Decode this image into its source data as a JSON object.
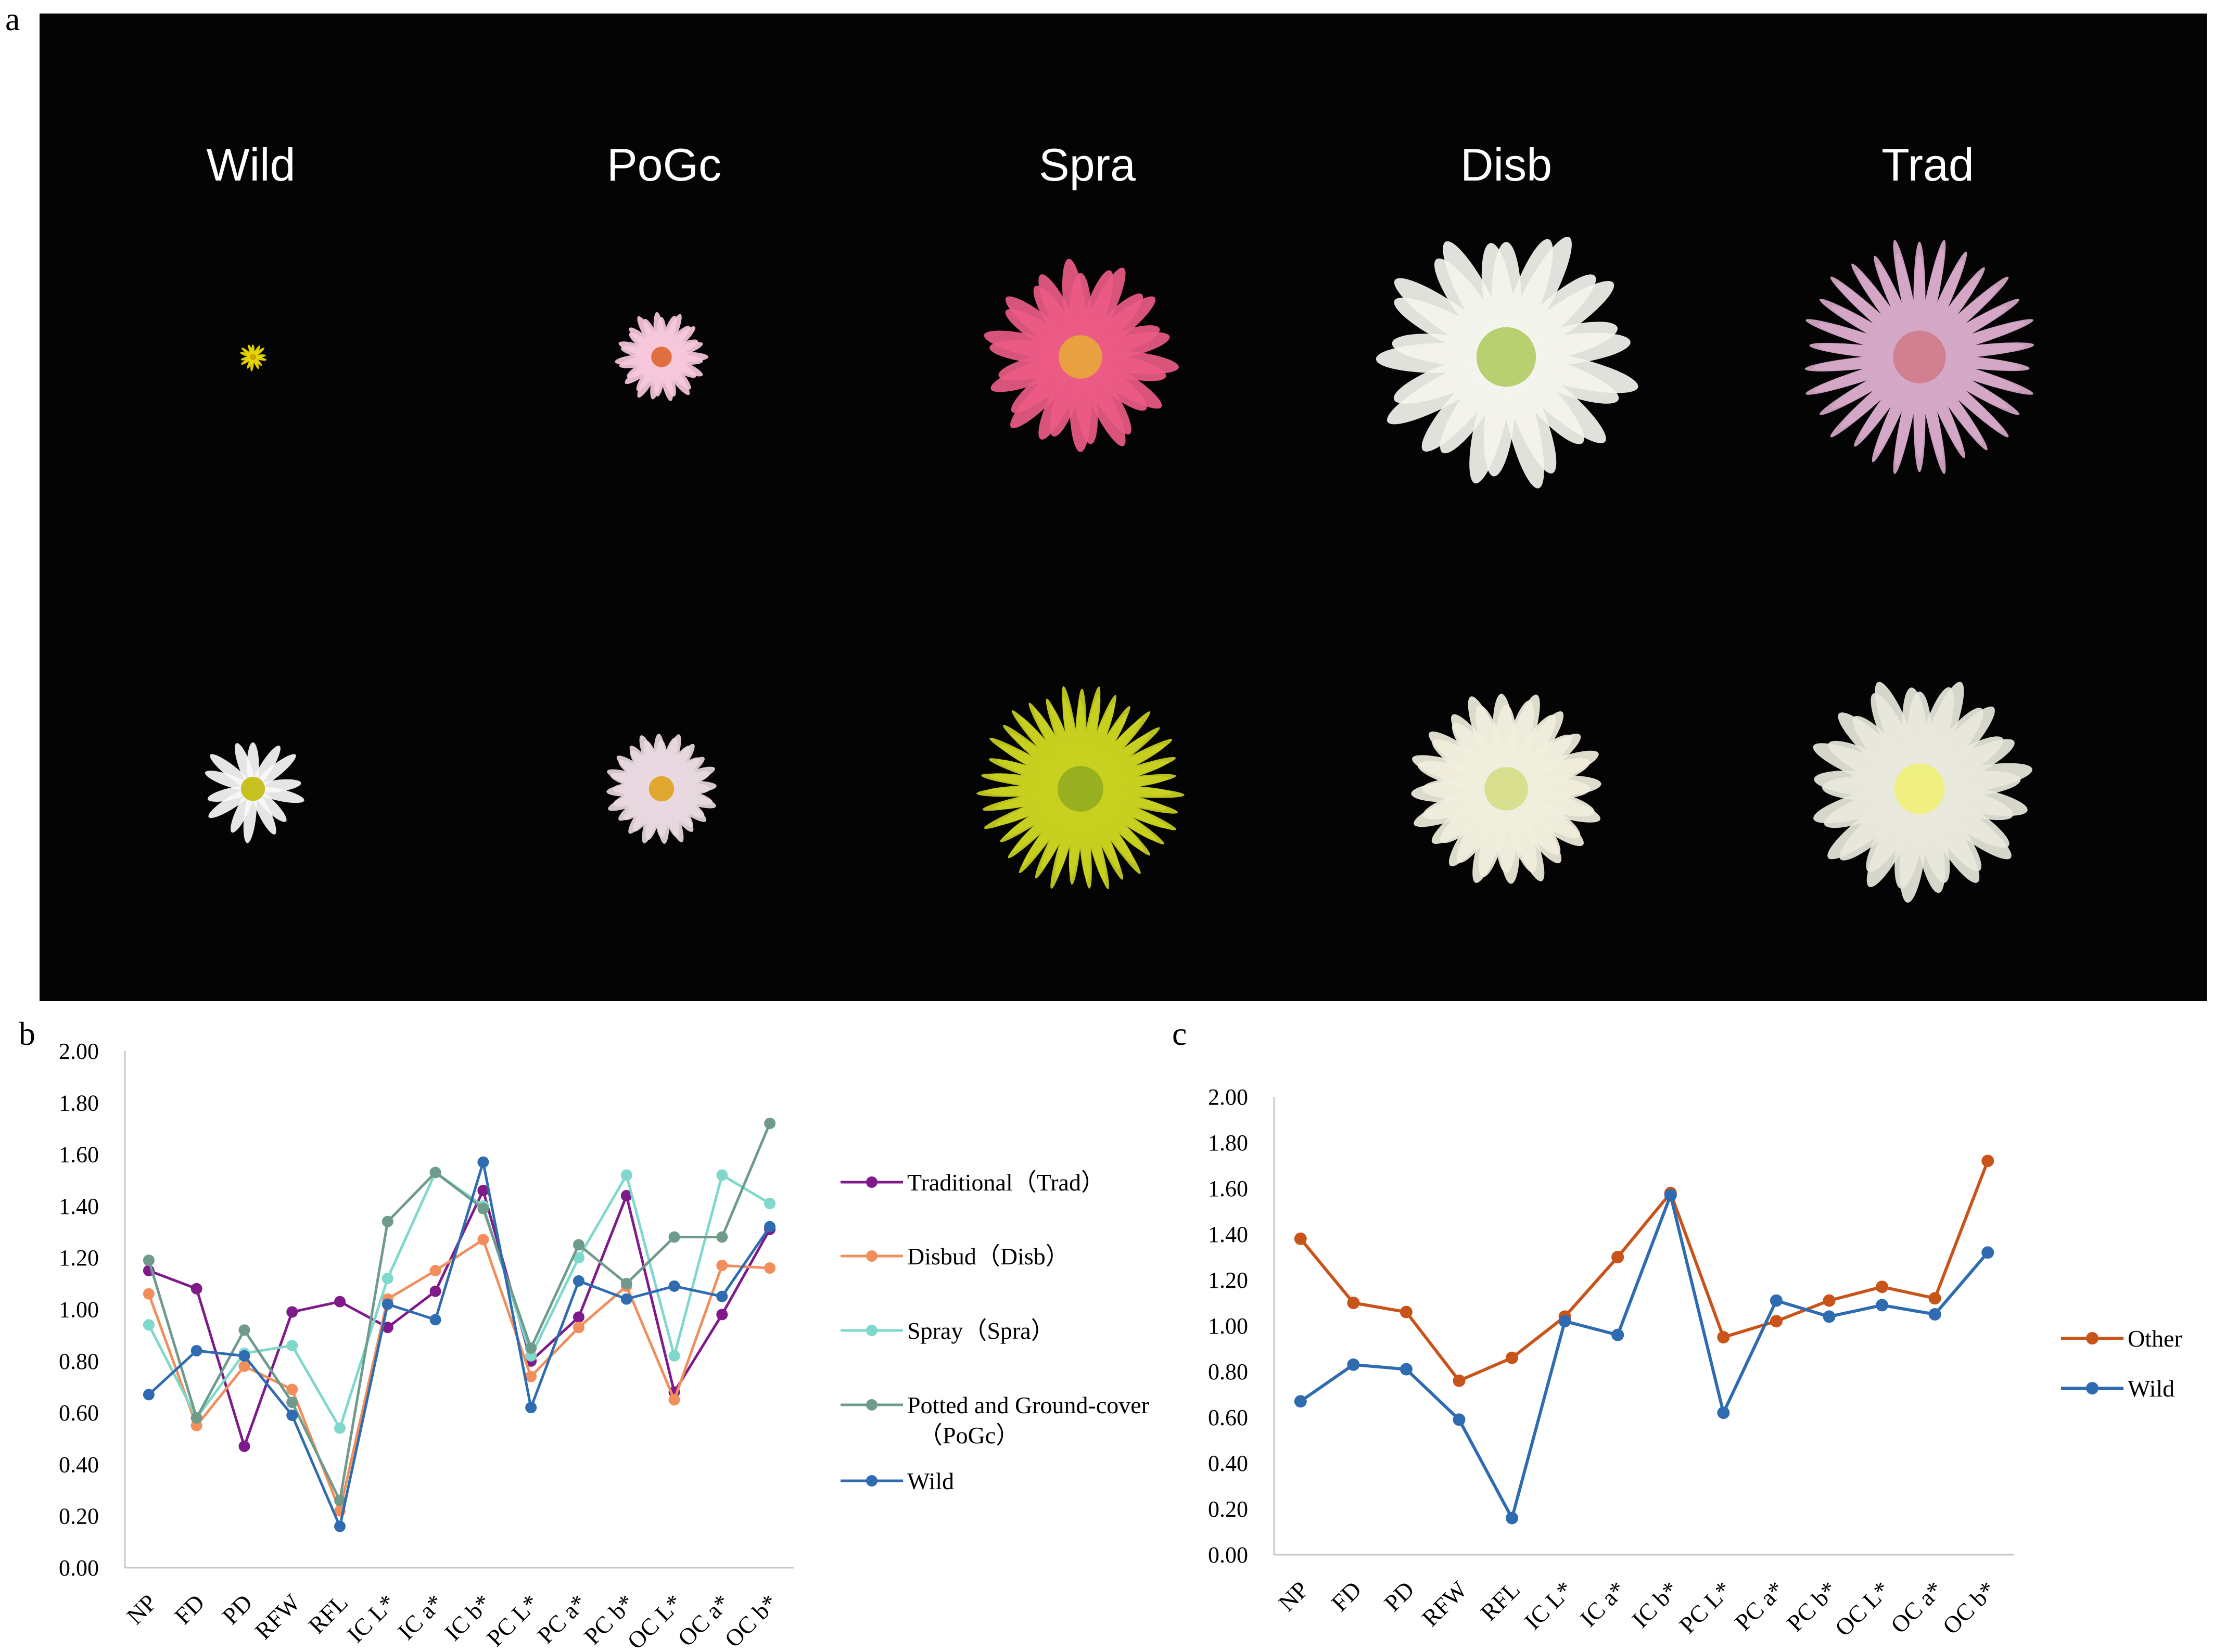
{
  "panel_letters": {
    "a": "a",
    "b": "b",
    "c": "c"
  },
  "panel_a": {
    "column_labels": [
      "Wild",
      "PoGc",
      "Spra",
      "Disb",
      "Trad"
    ],
    "flowers": [
      {
        "type": "Wild",
        "row": 1,
        "petal": "#f0e000",
        "center": "#c8a800"
      },
      {
        "type": "PoGc",
        "row": 1,
        "petal": "#f6c8dc",
        "center": "#e07040"
      },
      {
        "type": "Spra",
        "row": 1,
        "petal": "#ec5b86",
        "center": "#e8a040"
      },
      {
        "type": "Disb",
        "row": 1,
        "petal": "#f4f4ee",
        "center": "#b8d070"
      },
      {
        "type": "Trad",
        "row": 1,
        "petal": "#d6a8c8",
        "center": "#d08090"
      },
      {
        "type": "Wild",
        "row": 2,
        "petal": "#f8f8f8",
        "center": "#c8c020"
      },
      {
        "type": "PoGc",
        "row": 2,
        "petal": "#e8d8e0",
        "center": "#e0a830"
      },
      {
        "type": "Spra",
        "row": 2,
        "petal": "#c8d020",
        "center": "#98b020"
      },
      {
        "type": "Disb",
        "row": 2,
        "petal": "#f0eedc",
        "center": "#d8e090"
      },
      {
        "type": "Trad",
        "row": 2,
        "petal": "#e8e8dc",
        "center": "#f0f080"
      }
    ]
  },
  "chart_data": [
    {
      "type": "line",
      "panel": "b",
      "categories": [
        "NP",
        "FD",
        "PD",
        "RFW",
        "RFL",
        "IC L*",
        "IC a*",
        "IC b*",
        "PC L*",
        "PC a*",
        "PC b*",
        "OC L*",
        "OC a*",
        "OC b*"
      ],
      "ylim": [
        0,
        2
      ],
      "yticks": [
        "0.00",
        "0.20",
        "0.40",
        "0.60",
        "0.80",
        "1.00",
        "1.20",
        "1.40",
        "1.60",
        "1.80",
        "2.00"
      ],
      "legend_position": "right",
      "series": [
        {
          "name": "Traditional（Trad）",
          "color": "#7f1a8a",
          "values": [
            1.15,
            1.08,
            0.47,
            0.99,
            1.03,
            0.93,
            1.07,
            1.46,
            0.8,
            0.97,
            1.44,
            0.68,
            0.98,
            1.31
          ]
        },
        {
          "name": "Disbud（Disb）",
          "color": "#f28e5c",
          "values": [
            1.06,
            0.55,
            0.78,
            0.69,
            0.22,
            1.04,
            1.15,
            1.27,
            0.74,
            0.93,
            1.09,
            0.65,
            1.17,
            1.16
          ]
        },
        {
          "name": "Spray（Spra）",
          "color": "#7fd8cc",
          "values": [
            0.94,
            0.58,
            0.83,
            0.86,
            0.54,
            1.12,
            1.53,
            1.4,
            0.82,
            1.2,
            1.52,
            0.82,
            1.52,
            1.41
          ]
        },
        {
          "name": "Potted and Ground-cover",
          "name_line2": "（PoGc）",
          "color": "#6e9b8a",
          "values": [
            1.19,
            0.58,
            0.92,
            0.64,
            0.26,
            1.34,
            1.53,
            1.39,
            0.85,
            1.25,
            1.1,
            1.28,
            1.28,
            1.72
          ]
        },
        {
          "name": "Wild",
          "color": "#2e6bb0",
          "values": [
            0.67,
            0.84,
            0.82,
            0.59,
            0.16,
            1.02,
            0.96,
            1.57,
            0.62,
            1.11,
            1.04,
            1.09,
            1.05,
            1.32
          ]
        }
      ]
    },
    {
      "type": "line",
      "panel": "c",
      "categories": [
        "NP",
        "FD",
        "PD",
        "RFW",
        "RFL",
        "IC L*",
        "IC a*",
        "IC b*",
        "PC L*",
        "PC a*",
        "PC b*",
        "OC L*",
        "OC a*",
        "OC b*"
      ],
      "ylim": [
        0,
        2
      ],
      "yticks": [
        "0.00",
        "0.20",
        "0.40",
        "0.60",
        "0.80",
        "1.00",
        "1.20",
        "1.40",
        "1.60",
        "1.80",
        "2.00"
      ],
      "legend_position": "right",
      "series": [
        {
          "name": "Other",
          "color": "#c9541a",
          "values": [
            1.38,
            1.1,
            1.06,
            0.76,
            0.86,
            1.04,
            1.3,
            1.58,
            0.95,
            1.02,
            1.11,
            1.17,
            1.12,
            1.72
          ]
        },
        {
          "name": "Wild",
          "color": "#2e6bb0",
          "values": [
            0.67,
            0.83,
            0.81,
            0.59,
            0.16,
            1.02,
            0.96,
            1.57,
            0.62,
            1.11,
            1.04,
            1.09,
            1.05,
            1.32
          ]
        }
      ]
    }
  ]
}
